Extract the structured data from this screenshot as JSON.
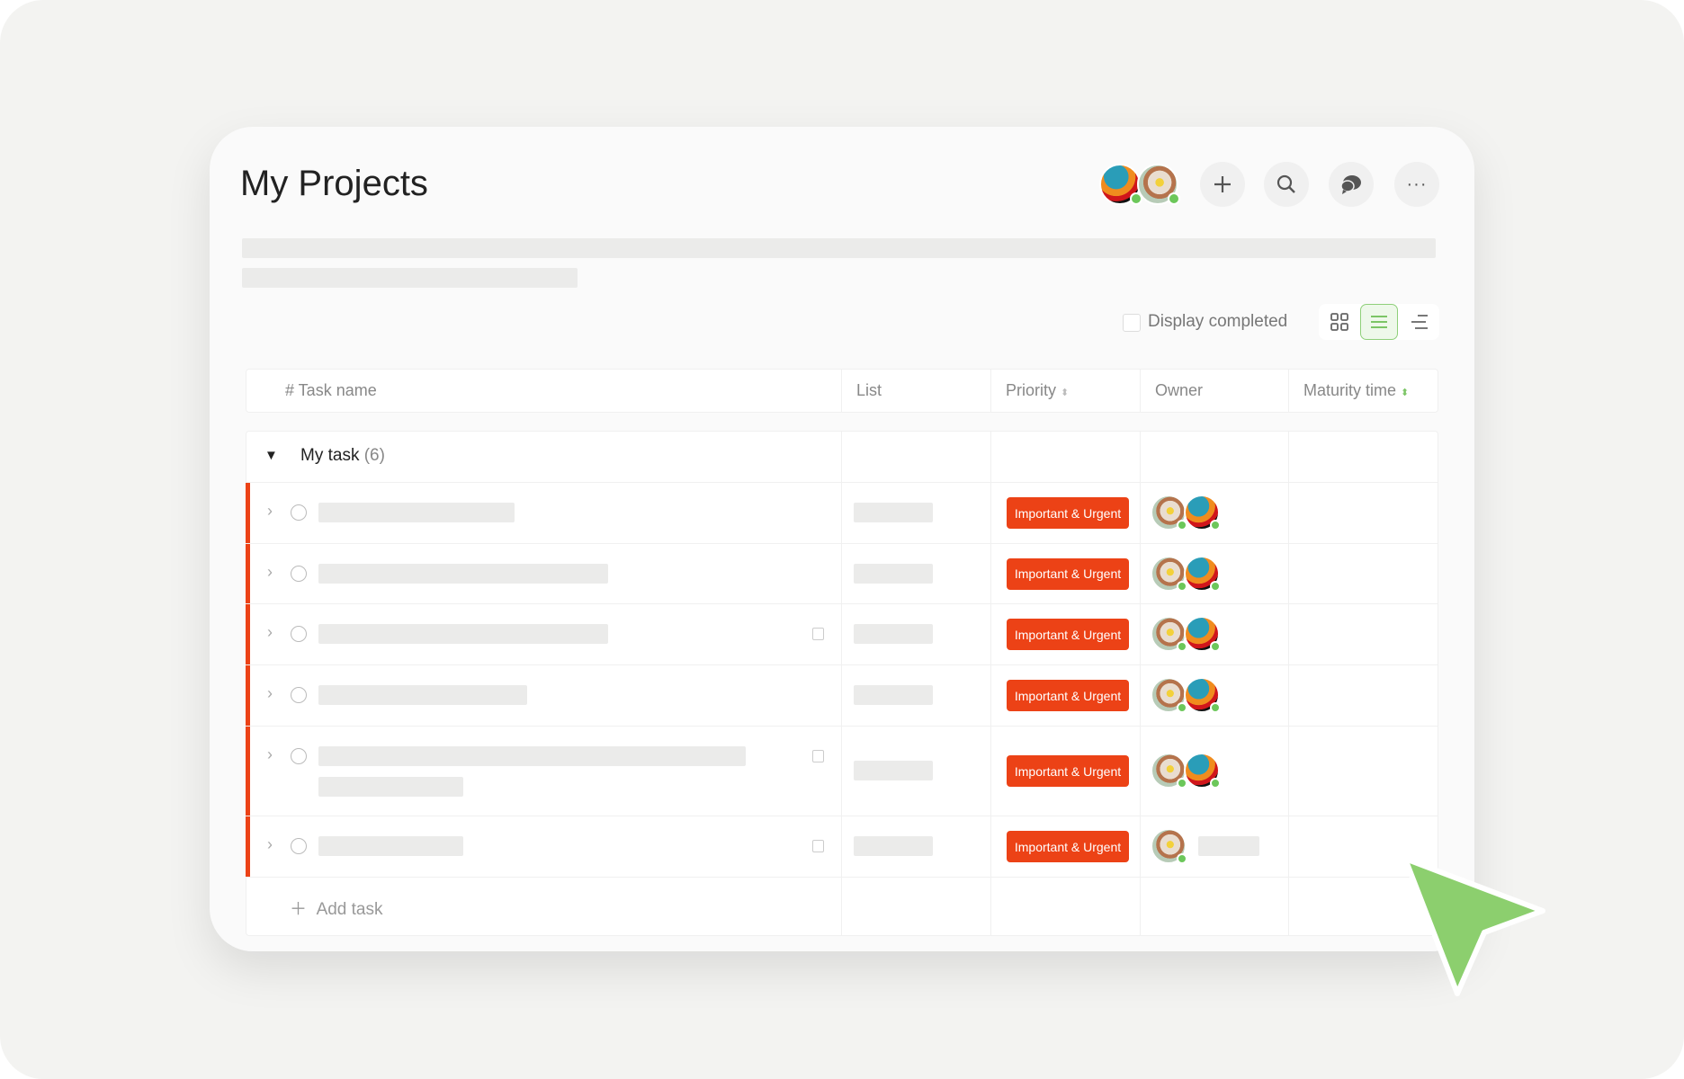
{
  "title": "My Projects",
  "header_actions": [
    {
      "icon": "plus-icon"
    },
    {
      "icon": "search-icon"
    },
    {
      "icon": "chat-icon"
    },
    {
      "icon": "more-icon",
      "label": "···"
    }
  ],
  "display_completed": {
    "label": "Display completed",
    "checked": false
  },
  "view_modes": [
    {
      "icon": "grid-icon",
      "active": false
    },
    {
      "icon": "list-icon",
      "active": true
    },
    {
      "icon": "gantt-icon",
      "active": false
    }
  ],
  "columns": [
    "# Task name",
    "List",
    "Priority",
    "Owner",
    "Maturity time"
  ],
  "group": {
    "name": "My task",
    "count": "(6)"
  },
  "rows": [
    {
      "priority": "Important & Urgent",
      "owners": 2,
      "note": false
    },
    {
      "priority": "Important & Urgent",
      "owners": 2,
      "note": false
    },
    {
      "priority": "Important & Urgent",
      "owners": 2,
      "note": true
    },
    {
      "priority": "Important & Urgent",
      "owners": 2,
      "note": false
    },
    {
      "priority": "Important & Urgent",
      "owners": 2,
      "note": true
    },
    {
      "priority": "Important & Urgent",
      "owners": 1,
      "note": true
    }
  ],
  "add_task": "Add task",
  "colors": {
    "accent": "#8ccf6e",
    "priority": "#ec4216",
    "online": "#6cc75a"
  }
}
